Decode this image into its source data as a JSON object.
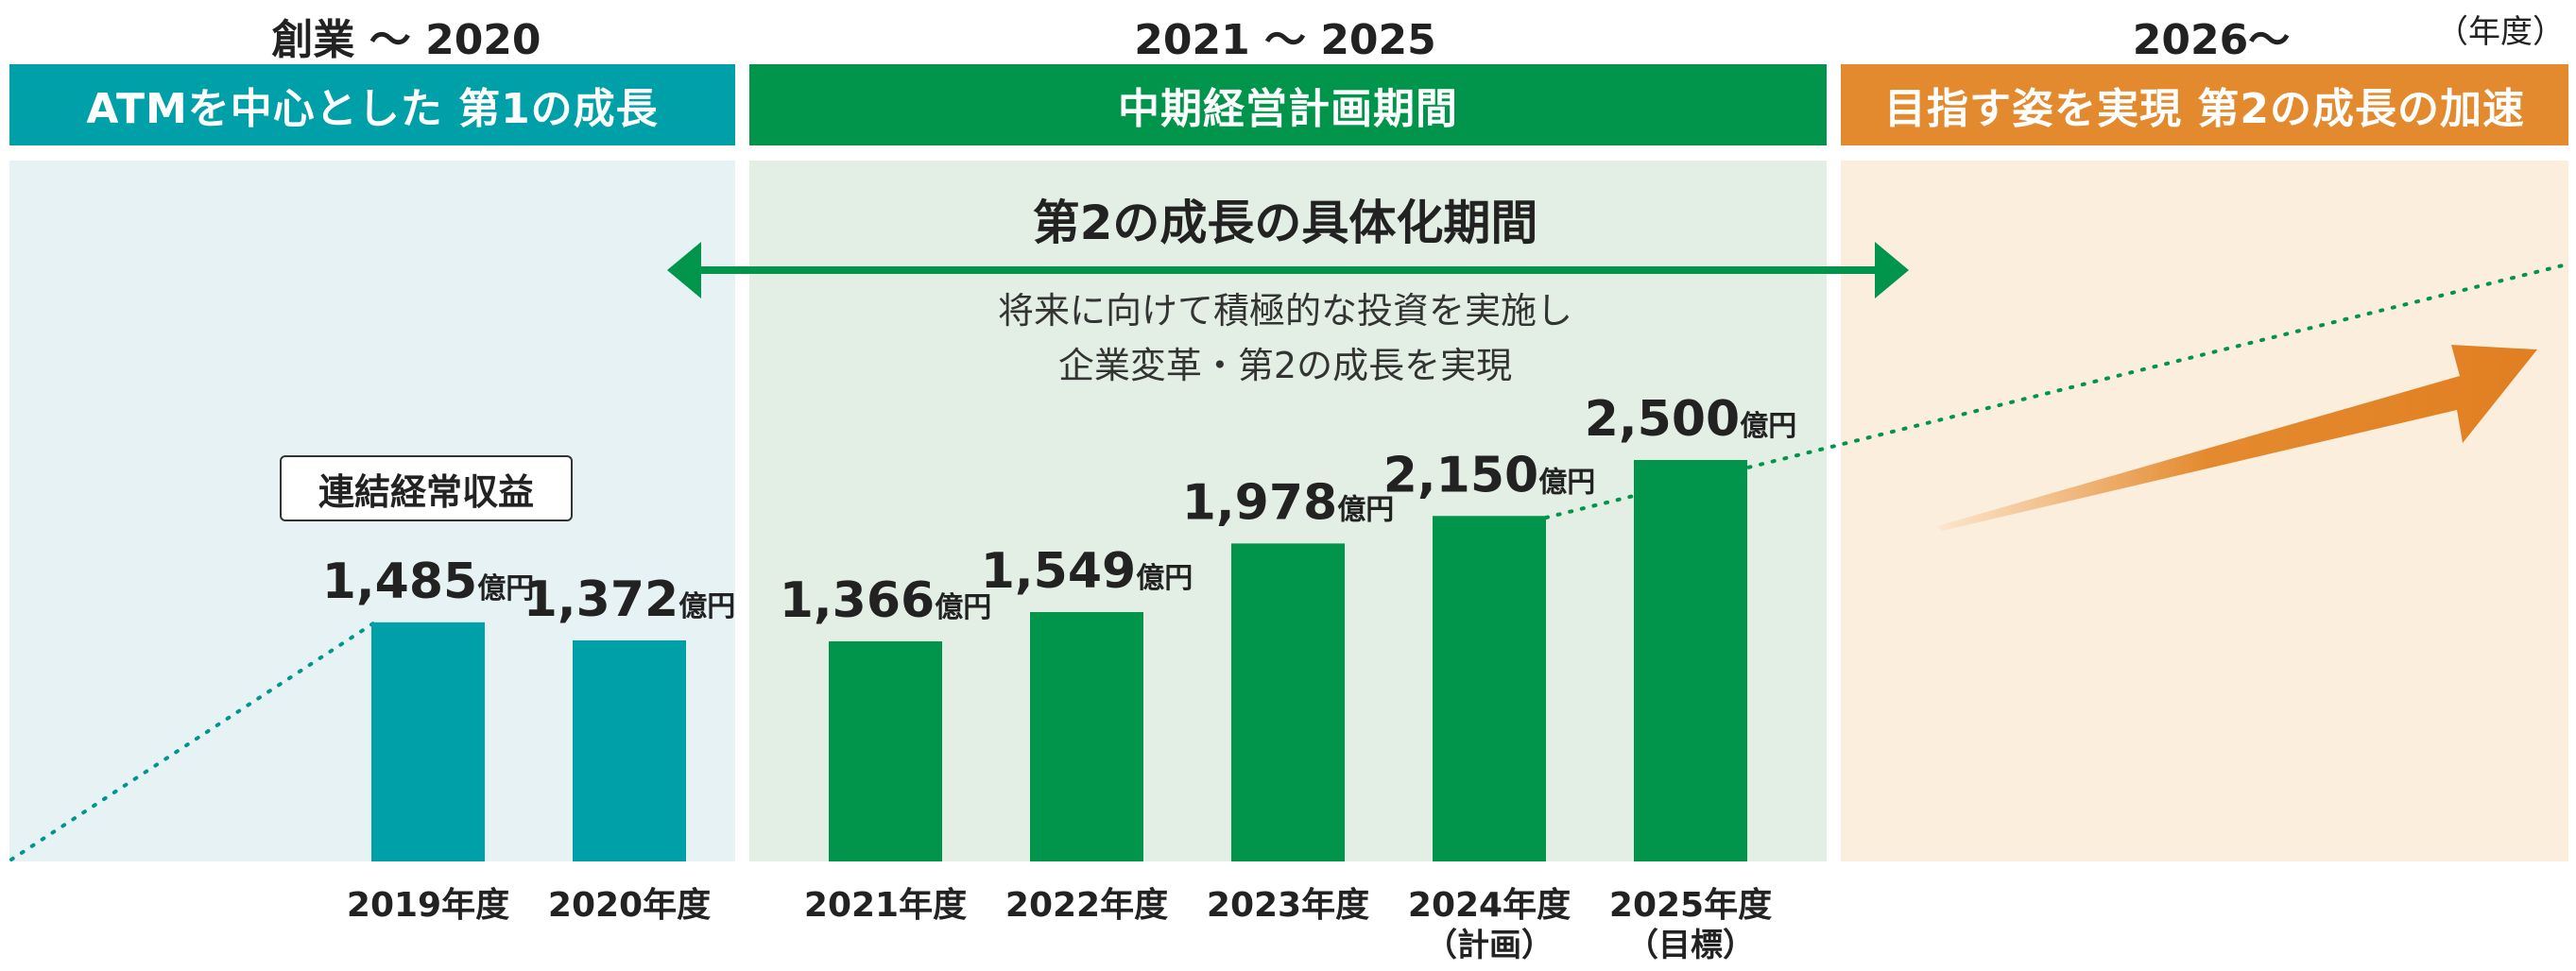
{
  "periods": [
    {
      "range": "創業 〜 2020",
      "banner": "ATMを中心とした  第1の成長",
      "color": "#00a0a8"
    },
    {
      "range": "2021 〜 2025",
      "banner": "中期経営計画期間",
      "color": "#00954a"
    },
    {
      "range": "2026〜",
      "banner": "目指す姿を実現  第2の成長の加速",
      "color": "#e48a2e"
    }
  ],
  "unit_note": "（年度）",
  "subtitle": "第2の成長の具体化期間",
  "description": [
    "将来に向けて積極的な投資を実施し",
    "企業変革・第2の成長を実現"
  ],
  "legend_label": "連結経常収益",
  "chart_data": {
    "type": "bar",
    "categories": [
      "2019年度",
      "2020年度",
      "2021年度",
      "2022年度",
      "2023年度",
      "2024年度",
      "2025年度"
    ],
    "category_notes": [
      "",
      "",
      "",
      "",
      "",
      "（計画）",
      "（目標）"
    ],
    "values": [
      1485,
      1372,
      1366,
      1549,
      1978,
      2150,
      2500
    ],
    "value_labels": [
      "1,485",
      "1,372",
      "1,366",
      "1,549",
      "1,978",
      "2,150",
      "2,500"
    ],
    "value_unit": "億円",
    "colors": [
      "#00a0a8",
      "#00a0a8",
      "#00954a",
      "#00954a",
      "#00954a",
      "#00954a",
      "#00954a"
    ]
  }
}
